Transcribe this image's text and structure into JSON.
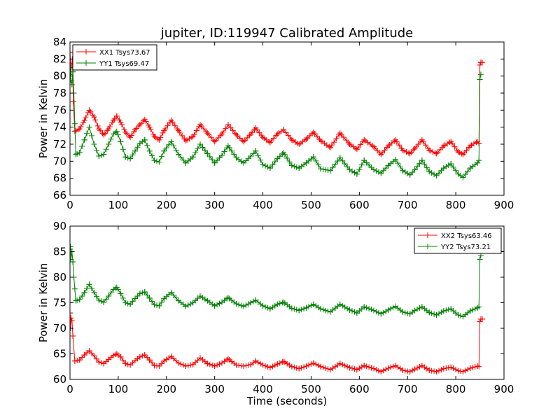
{
  "figure": {
    "title": "jupiter, ID:119947 Calibrated Amplitude",
    "xlabel": "Time (seconds)"
  },
  "chart_data": [
    {
      "type": "line",
      "title": "jupiter, ID:119947 Calibrated Amplitude",
      "xlabel": "",
      "ylabel": "Power in Kelvin",
      "xlim": [
        0,
        900
      ],
      "ylim": [
        66,
        84
      ],
      "xticks": [
        "0",
        "100",
        "200",
        "300",
        "400",
        "500",
        "600",
        "700",
        "800",
        "900"
      ],
      "yticks": [
        "66",
        "68",
        "70",
        "72",
        "74",
        "76",
        "78",
        "80",
        "82",
        "84"
      ],
      "grid": false,
      "legend_position": "upper left",
      "marker": "+",
      "series": [
        {
          "name": "XX1 Tsys73.67",
          "color": "#ff0000",
          "x": [
            0,
            1,
            2,
            5,
            7,
            10,
            20,
            30,
            40,
            50,
            60,
            70,
            80,
            90,
            97,
            105,
            115,
            125,
            135,
            145,
            155,
            165,
            175,
            185,
            195,
            210,
            225,
            240,
            255,
            270,
            285,
            300,
            315,
            328,
            345,
            360,
            375,
            385,
            400,
            415,
            430,
            443,
            460,
            475,
            490,
            505,
            520,
            540,
            560,
            580,
            595,
            610,
            630,
            645,
            660,
            675,
            690,
            705,
            715,
            730,
            745,
            760,
            775,
            790,
            805,
            815,
            830,
            845,
            848,
            850,
            852,
            855
          ],
          "values": [
            82.8,
            81.5,
            80.5,
            82.0,
            77.0,
            73.5,
            73.8,
            74.8,
            76.0,
            75.2,
            73.8,
            73.1,
            73.8,
            74.8,
            75.3,
            74.6,
            73.4,
            72.8,
            73.7,
            74.3,
            74.9,
            74.0,
            72.9,
            72.5,
            73.6,
            74.8,
            73.6,
            72.4,
            72.9,
            74.3,
            73.3,
            72.3,
            73.2,
            74.3,
            73.1,
            72.3,
            73.2,
            73.9,
            72.8,
            72.2,
            73.2,
            73.7,
            72.5,
            72.0,
            72.6,
            73.4,
            72.4,
            71.6,
            73.3,
            72.0,
            71.4,
            72.5,
            71.7,
            70.8,
            71.8,
            72.5,
            71.3,
            70.9,
            71.5,
            72.5,
            71.3,
            70.9,
            71.8,
            72.3,
            71.1,
            70.8,
            71.8,
            72.3,
            72.1,
            81.3,
            81.6,
            81.6
          ]
        },
        {
          "name": "YY1 Tsys69.47",
          "color": "#008000",
          "x": [
            0,
            1,
            2,
            4,
            6,
            8,
            12,
            20,
            30,
            40,
            50,
            60,
            70,
            80,
            90,
            97,
            105,
            115,
            125,
            135,
            145,
            155,
            165,
            175,
            185,
            195,
            210,
            225,
            240,
            255,
            270,
            285,
            300,
            315,
            328,
            345,
            360,
            375,
            385,
            400,
            415,
            430,
            443,
            460,
            475,
            490,
            505,
            520,
            540,
            560,
            580,
            595,
            610,
            630,
            645,
            660,
            675,
            690,
            705,
            715,
            730,
            745,
            760,
            775,
            790,
            805,
            815,
            830,
            845,
            848,
            850,
            852
          ],
          "values": [
            80.2,
            81.0,
            79.5,
            79.0,
            80.5,
            78.0,
            70.8,
            71.0,
            72.5,
            74.0,
            72.0,
            70.6,
            70.8,
            72.0,
            73.2,
            73.5,
            72.3,
            70.5,
            70.3,
            71.2,
            72.1,
            72.5,
            71.2,
            70.1,
            69.9,
            71.2,
            72.3,
            70.8,
            69.8,
            70.5,
            72.0,
            70.9,
            69.8,
            70.7,
            71.8,
            70.4,
            69.8,
            70.6,
            71.2,
            69.6,
            69.2,
            70.3,
            71.0,
            69.5,
            69.2,
            69.8,
            70.5,
            69.1,
            68.9,
            70.4,
            69.0,
            68.5,
            70.1,
            69.0,
            68.6,
            69.5,
            70.2,
            68.9,
            68.4,
            69.0,
            70.1,
            68.8,
            68.3,
            69.2,
            69.7,
            68.5,
            68.1,
            69.2,
            69.8,
            70.1,
            79.6,
            80.2
          ]
        }
      ]
    },
    {
      "type": "line",
      "title": "",
      "xlabel": "Time (seconds)",
      "ylabel": "Power in Kelvin",
      "xlim": [
        0,
        900
      ],
      "ylim": [
        60,
        90
      ],
      "xticks": [
        "0",
        "100",
        "200",
        "300",
        "400",
        "500",
        "600",
        "700",
        "800",
        "900"
      ],
      "yticks": [
        "60",
        "65",
        "70",
        "75",
        "80",
        "85",
        "90"
      ],
      "grid": false,
      "legend_position": "upper right",
      "marker": "+",
      "series": [
        {
          "name": "XX2 Tsys63.46",
          "color": "#ff0000",
          "x": [
            0,
            1,
            2,
            4,
            6,
            10,
            20,
            30,
            40,
            50,
            60,
            70,
            80,
            90,
            97,
            105,
            115,
            125,
            135,
            145,
            155,
            165,
            175,
            185,
            195,
            210,
            225,
            240,
            255,
            270,
            285,
            300,
            315,
            328,
            345,
            360,
            375,
            385,
            400,
            415,
            430,
            443,
            460,
            475,
            490,
            505,
            520,
            540,
            560,
            580,
            595,
            610,
            630,
            645,
            660,
            675,
            690,
            705,
            715,
            730,
            745,
            760,
            775,
            790,
            805,
            815,
            830,
            845,
            848,
            850,
            852,
            855
          ],
          "values": [
            73.0,
            70.0,
            72.0,
            71.5,
            68.5,
            63.6,
            63.8,
            64.8,
            65.6,
            64.6,
            63.4,
            63.1,
            63.9,
            64.7,
            65.0,
            64.4,
            63.1,
            62.8,
            63.7,
            64.4,
            64.8,
            63.8,
            62.7,
            62.6,
            63.6,
            64.5,
            63.2,
            62.6,
            62.9,
            64.2,
            63.1,
            62.6,
            63.2,
            64.0,
            62.8,
            62.6,
            62.9,
            63.6,
            62.8,
            62.3,
            63.0,
            63.5,
            62.5,
            62.1,
            62.6,
            63.2,
            62.5,
            61.9,
            63.1,
            62.3,
            61.9,
            62.7,
            62.1,
            61.5,
            62.2,
            62.7,
            61.8,
            61.5,
            62.0,
            62.7,
            61.8,
            61.5,
            62.1,
            62.4,
            61.7,
            61.5,
            62.2,
            62.6,
            62.5,
            71.3,
            71.8,
            71.8
          ]
        },
        {
          "name": "YY2 Tsys73.21",
          "color": "#008000",
          "x": [
            0,
            1,
            2,
            4,
            6,
            8,
            12,
            20,
            30,
            40,
            50,
            60,
            70,
            80,
            90,
            97,
            105,
            115,
            125,
            135,
            145,
            155,
            165,
            175,
            185,
            195,
            210,
            225,
            240,
            255,
            270,
            285,
            300,
            315,
            328,
            345,
            360,
            375,
            385,
            400,
            415,
            430,
            443,
            460,
            475,
            490,
            505,
            520,
            540,
            560,
            580,
            595,
            610,
            630,
            645,
            660,
            675,
            690,
            705,
            715,
            730,
            745,
            760,
            775,
            790,
            805,
            815,
            830,
            845,
            848,
            850,
            852
          ],
          "values": [
            85.5,
            86.0,
            83.5,
            85.0,
            83.0,
            80.0,
            75.4,
            75.6,
            77.0,
            78.6,
            77.0,
            75.5,
            75.1,
            76.3,
            77.6,
            78.0,
            76.8,
            75.0,
            74.7,
            75.8,
            76.8,
            77.1,
            75.9,
            74.6,
            74.4,
            75.8,
            77.0,
            75.4,
            74.3,
            75.0,
            76.3,
            75.4,
            74.4,
            75.1,
            76.0,
            74.8,
            74.3,
            75.0,
            75.5,
            74.4,
            73.8,
            74.7,
            75.1,
            73.9,
            73.5,
            74.0,
            74.7,
            73.8,
            73.2,
            74.7,
            73.6,
            73.0,
            74.2,
            73.5,
            72.8,
            73.6,
            74.3,
            73.2,
            72.8,
            73.5,
            74.2,
            73.1,
            72.6,
            73.4,
            73.8,
            72.6,
            72.3,
            73.4,
            74.0,
            74.2,
            83.5,
            84.3
          ]
        }
      ]
    }
  ]
}
